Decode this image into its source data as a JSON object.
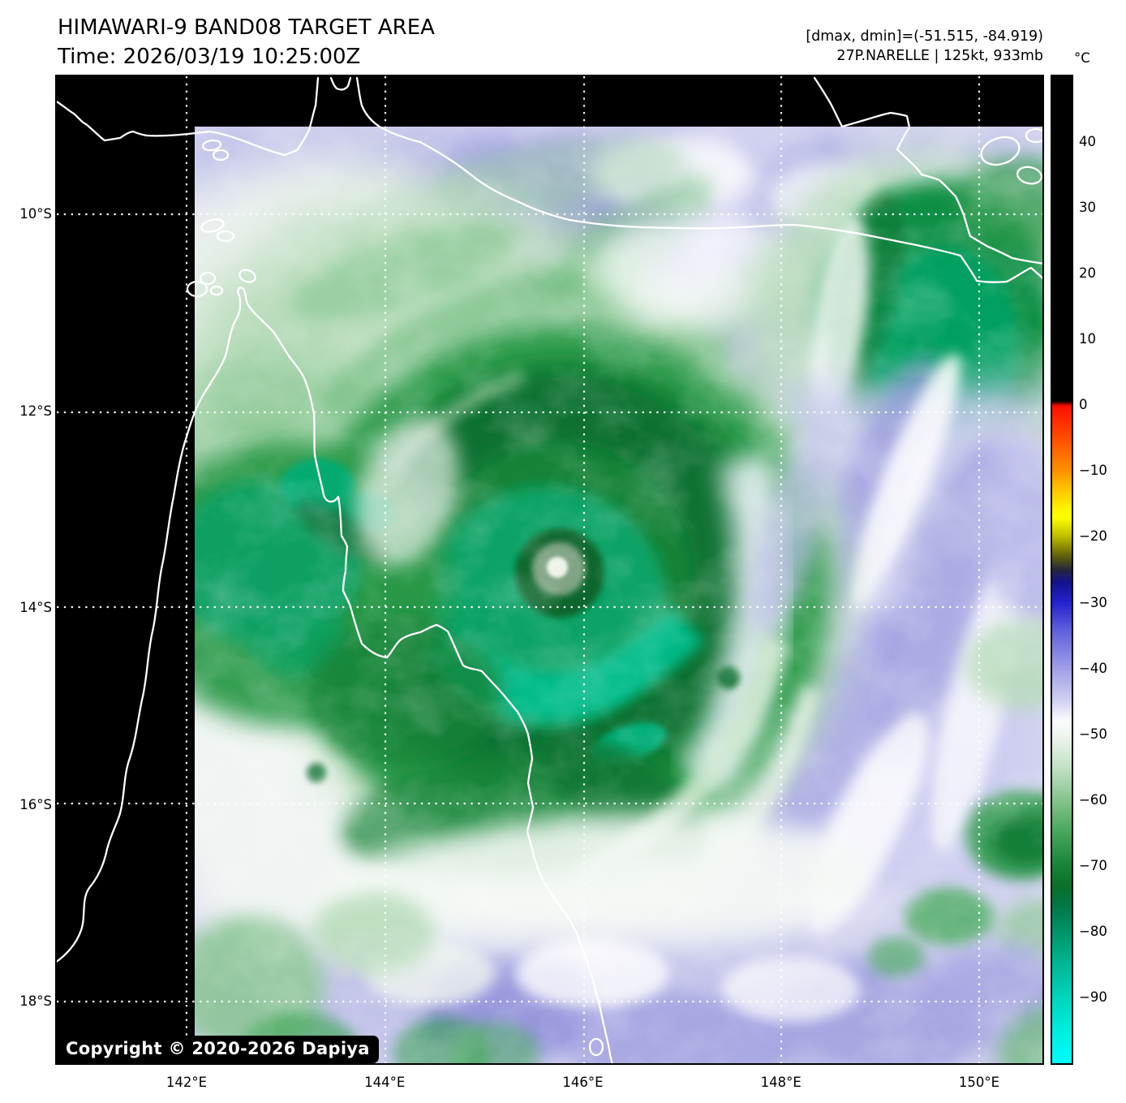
{
  "header": {
    "title": "HIMAWARI-9 BAND08 TARGET AREA",
    "time_line": "Time: 2026/03/19 10:25:00Z",
    "stats_line": "[dmax, dmin]=(-51.515, -84.919)",
    "storm_line": "27P.NARELLE | 125kt, 933mb"
  },
  "map": {
    "copyright": "Copyright © 2020-2026 Dapiya"
  },
  "axes": {
    "x_ticks": [
      {
        "label": "142°E",
        "lon": 142
      },
      {
        "label": "144°E",
        "lon": 144
      },
      {
        "label": "146°E",
        "lon": 146
      },
      {
        "label": "148°E",
        "lon": 148
      },
      {
        "label": "150°E",
        "lon": 150
      }
    ],
    "y_ticks": [
      {
        "label": "10°S",
        "lat_s": 10
      },
      {
        "label": "12°S",
        "lat_s": 12
      },
      {
        "label": "14°S",
        "lat_s": 14
      },
      {
        "label": "16°S",
        "lat_s": 16
      },
      {
        "label": "18°S",
        "lat_s": 18
      }
    ]
  },
  "colorbar": {
    "unit": "°C",
    "domain_max": 50,
    "domain_min": -100,
    "ticks": [
      {
        "label": "40",
        "value": 40
      },
      {
        "label": "30",
        "value": 30
      },
      {
        "label": "20",
        "value": 20
      },
      {
        "label": "10",
        "value": 10
      },
      {
        "label": "0",
        "value": 0
      },
      {
        "label": "−10",
        "value": -10
      },
      {
        "label": "−20",
        "value": -20
      },
      {
        "label": "−30",
        "value": -30
      },
      {
        "label": "−40",
        "value": -40
      },
      {
        "label": "−50",
        "value": -50
      },
      {
        "label": "−60",
        "value": -60
      },
      {
        "label": "−70",
        "value": -70
      },
      {
        "label": "−80",
        "value": -80
      },
      {
        "label": "−90",
        "value": -90
      }
    ]
  },
  "chart_data": {
    "type": "heatmap",
    "title": "HIMAWARI-9 BAND08 TARGET AREA",
    "time_utc": "2026/03/19 10:25:00Z",
    "satellite": "HIMAWARI-9",
    "band": "BAND08",
    "quantity": "brightness temperature",
    "unit": "°C",
    "storm": {
      "id": "27P",
      "name": "NARELLE",
      "max_wind_kt": 125,
      "min_pressure_mb": 933
    },
    "domain_stats": {
      "dmax_c": -51.515,
      "dmin_c": -84.919
    },
    "colorbar": {
      "range": [
        -100,
        50
      ],
      "tick_step": 10,
      "tick_values": [
        40,
        30,
        20,
        10,
        0,
        -10,
        -20,
        -30,
        -40,
        -50,
        -60,
        -70,
        -80,
        -90
      ],
      "palette_top_to_bottom": [
        "black (>0)",
        "red 0",
        "orange -10",
        "yellow -17",
        "olive -20",
        "navy -27",
        "blue -30",
        "lavender -40",
        "white -48",
        "light green -52",
        "green -60",
        "dark green -72",
        "teal -80",
        "turquoise -90",
        "cyan -100"
      ]
    },
    "x_axis": {
      "tick_labels": [
        "142°E",
        "144°E",
        "146°E",
        "148°E",
        "150°E"
      ],
      "approx_range_deg_east": [
        140.7,
        150.6
      ]
    },
    "y_axis": {
      "tick_labels": [
        "10°S",
        "12°S",
        "14°S",
        "16°S",
        "18°S"
      ],
      "approx_range_deg_south": [
        8.6,
        18.6
      ]
    },
    "grid": "white dotted 2-degree graticule",
    "legend_position": "right colorbar",
    "features": [
      {
        "name": "cyclone-eye",
        "approx_lon_e": 145.8,
        "approx_lat_s": 13.6,
        "note": "small warm eye in cold central dense overcast"
      },
      {
        "name": "central-dense-overcast",
        "approx_lon_e": 145.8,
        "approx_lat_s": 13.7,
        "note": "cloud tops near -75 to -85 °C"
      },
      {
        "name": "west-convective-cluster",
        "approx_lon_e": 142.8,
        "approx_lat_s": 13.5
      },
      {
        "name": "png-convective-cluster",
        "approx_lon_e": 149.5,
        "approx_lat_s": 11.2
      },
      {
        "name": "no-data-region",
        "note": "black band along left and top edge of target area"
      }
    ]
  }
}
